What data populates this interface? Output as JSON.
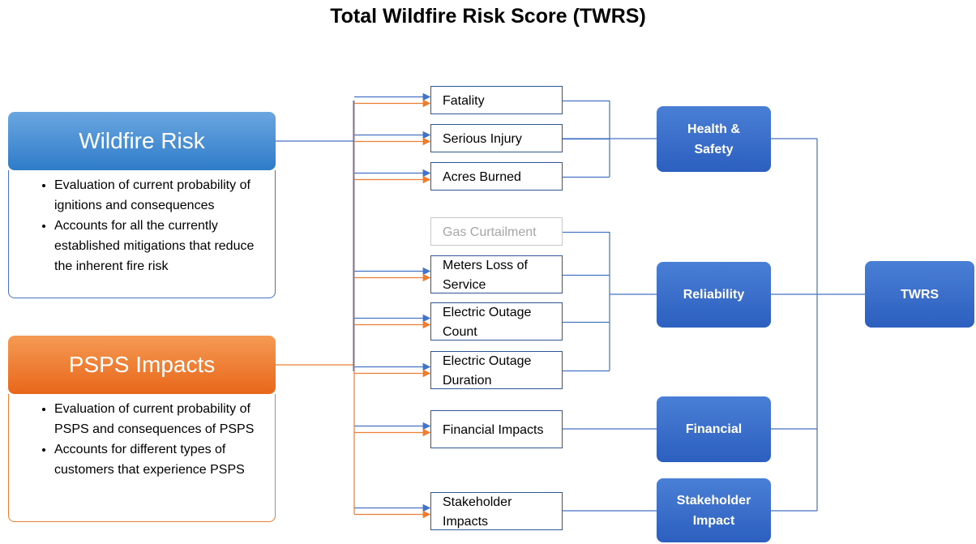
{
  "title": "Total Wildfire Risk Score (TWRS)",
  "sources": [
    {
      "label": "Wildfire Risk",
      "bullets": [
        "Evaluation of current probability of ignitions and consequences",
        "Accounts for all the currently established mitigations that reduce the inherent fire risk"
      ]
    },
    {
      "label": "PSPS Impacts",
      "bullets": [
        "Evaluation of current probability of PSPS and consequences of PSPS",
        "Accounts for different types of customers that experience PSPS"
      ]
    }
  ],
  "consequences": [
    "Fatality",
    "Serious Injury",
    "Acres Burned",
    "Gas Curtailment",
    "Meters Loss of Service",
    "Electric Outage Count",
    "Electric Outage Duration",
    "Financial Impacts",
    "Stakeholder Impacts"
  ],
  "categories": [
    "Health & Safety",
    "Reliability",
    "Financial",
    "Stakeholder Impact"
  ],
  "result": "TWRS"
}
